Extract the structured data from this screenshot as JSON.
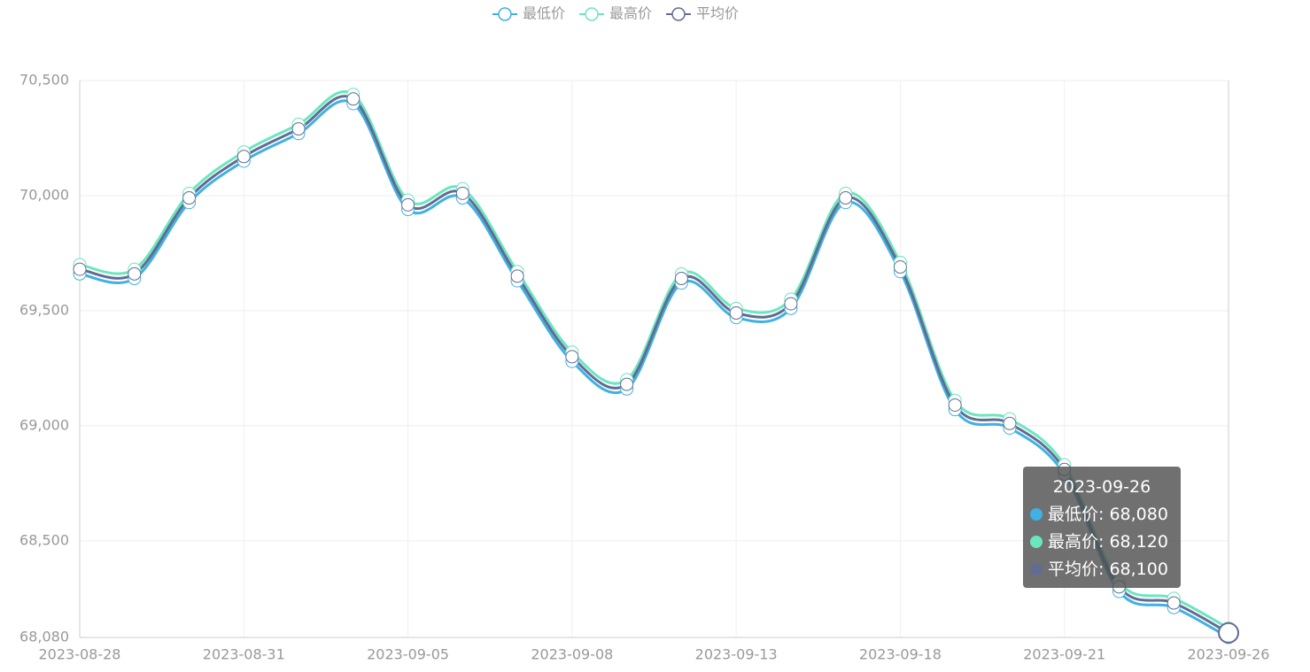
{
  "chart_data": {
    "type": "line",
    "smooth": true,
    "categories": [
      "2023-08-28",
      null,
      null,
      "2023-08-31",
      null,
      null,
      "2023-09-05",
      null,
      null,
      "2023-09-08",
      null,
      null,
      "2023-09-13",
      null,
      null,
      "2023-09-18",
      null,
      null,
      "2023-09-21",
      null,
      null,
      "2023-09-26"
    ],
    "series": [
      {
        "name": "最低价",
        "color": "#3fb1e3",
        "values": [
          69660,
          69640,
          69970,
          70150,
          70270,
          70400,
          69940,
          69990,
          69630,
          69280,
          69160,
          69620,
          69470,
          69510,
          69970,
          69670,
          69070,
          68990,
          68790,
          68280,
          68210,
          68080
        ]
      },
      {
        "name": "最高价",
        "color": "#6be6c1",
        "values": [
          69700,
          69680,
          70010,
          70190,
          70310,
          70440,
          69980,
          70030,
          69670,
          69320,
          69200,
          69660,
          69510,
          69550,
          70010,
          69710,
          69110,
          69030,
          68830,
          68320,
          68250,
          68120
        ]
      },
      {
        "name": "平均价",
        "color": "#626c91",
        "values": [
          69680,
          69660,
          69990,
          70170,
          70290,
          70420,
          69960,
          70010,
          69650,
          69300,
          69180,
          69640,
          69490,
          69530,
          69990,
          69690,
          69090,
          69010,
          68810,
          68300,
          68230,
          68100
        ]
      }
    ],
    "ylim": [
      68080,
      70500
    ],
    "yticks": [
      {
        "value": 68080,
        "label": "68,080"
      },
      {
        "value": 68500,
        "label": "68,500"
      },
      {
        "value": 69000,
        "label": "69,000"
      },
      {
        "value": 69500,
        "label": "69,500"
      },
      {
        "value": 70000,
        "label": "70,000"
      },
      {
        "value": 70500,
        "label": "70,500"
      }
    ],
    "grid": true,
    "legend": "top",
    "tooltip": {
      "category": "2023-09-26",
      "rows": [
        "最低价: 68,080",
        "最高价: 68,120",
        "平均价: 68,100"
      ]
    }
  }
}
